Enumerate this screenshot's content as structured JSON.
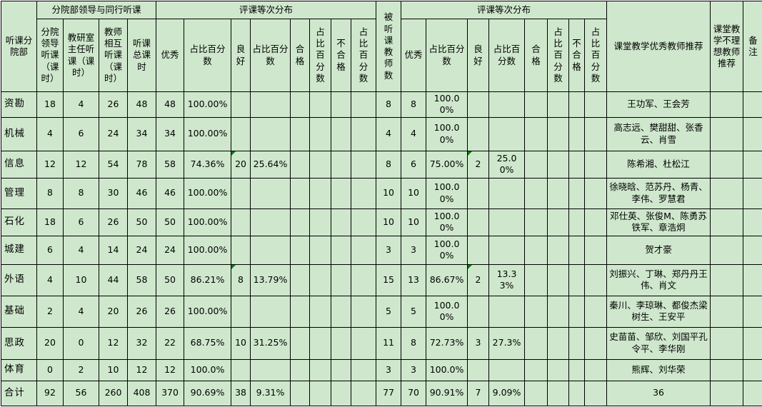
{
  "table": {
    "corner_header": "听课分院部",
    "groups": {
      "peer_listening": "分院部领导与同行听课",
      "eval_dist_1": "评课等次分布",
      "eval_dist_2": "评课等次分布"
    },
    "merged_headers": {
      "observed_teachers": "被听课教师数",
      "excellent_recommend": "课堂教学优秀教师推荐",
      "poor_recommend": "课堂教学不理想教师推荐",
      "remark": "备注"
    },
    "sub_headers": [
      "分院领导听课（课时）",
      "教研室主任听课（课时）",
      "教师相互听课（课时）",
      "听课总课时",
      "优秀",
      "占比百分数",
      "良好",
      "占比百分数",
      "合格",
      "占比百分数",
      "不合格",
      "占比百分数",
      "优秀",
      "占比百分数",
      "良好",
      "占比百分数",
      "合格",
      "占比百分数",
      "不合格",
      "占比百分数"
    ],
    "rows": [
      {
        "label": "资勘",
        "cells": [
          "18",
          "4",
          "26",
          "48",
          "48",
          "100.00%",
          "",
          "",
          "",
          "",
          "",
          "",
          "8",
          "8",
          "100.00%",
          "",
          "",
          "",
          "",
          "",
          "",
          "王功军、王会芳",
          "",
          ""
        ],
        "triangles": []
      },
      {
        "label": "机械",
        "cells": [
          "4",
          "6",
          "24",
          "34",
          "34",
          "100.00%",
          "",
          "",
          "",
          "",
          "",
          "",
          "4",
          "4",
          "100.00%",
          "",
          "",
          "",
          "",
          "",
          "",
          "高志远、樊甜甜、张香云、肖雪",
          "",
          ""
        ],
        "triangles": []
      },
      {
        "label": "信息",
        "cells": [
          "12",
          "12",
          "54",
          "78",
          "58",
          "74.36%",
          "20",
          "25.64%",
          "",
          "",
          "",
          "",
          "8",
          "6",
          "75.00%",
          "2",
          "25.00%",
          "",
          "",
          "",
          "",
          "陈希湘、杜松江",
          "",
          ""
        ],
        "triangles": [
          6,
          15
        ]
      },
      {
        "label": "管理",
        "cells": [
          "8",
          "8",
          "30",
          "46",
          "46",
          "100.00%",
          "",
          "",
          "",
          "",
          "",
          "",
          "10",
          "10",
          "100.00%",
          "",
          "",
          "",
          "",
          "",
          "",
          "徐晓晗、范苏丹、杨青、李伟、罗慧君",
          "",
          ""
        ],
        "triangles": []
      },
      {
        "label": "石化",
        "cells": [
          "18",
          "6",
          "26",
          "50",
          "50",
          "100.00%",
          "",
          "",
          "",
          "",
          "",
          "",
          "10",
          "10",
          "100.00%",
          "",
          "",
          "",
          "",
          "",
          "",
          "邓仕英、张俊M、陈勇苏铁军、章浩炯",
          "",
          ""
        ],
        "triangles": []
      },
      {
        "label": "城建",
        "cells": [
          "6",
          "4",
          "14",
          "24",
          "24",
          "100.00%",
          "",
          "",
          "",
          "",
          "",
          "",
          "3",
          "3",
          "100.00%",
          "",
          "",
          "",
          "",
          "",
          "",
          "贺才豪",
          "",
          ""
        ],
        "triangles": []
      },
      {
        "label": "外语",
        "cells": [
          "4",
          "10",
          "44",
          "58",
          "50",
          "86.21%",
          "8",
          "13.79%",
          "",
          "",
          "",
          "",
          "15",
          "13",
          "86.67%",
          "2",
          "13.33%",
          "",
          "",
          "",
          "",
          "刘振兴、丁琳、郑丹丹王伟、肖文",
          "",
          ""
        ],
        "triangles": [
          6,
          15
        ]
      },
      {
        "label": "基础",
        "cells": [
          "2",
          "4",
          "20",
          "26",
          "26",
          "100.00%",
          "",
          "",
          "",
          "",
          "",
          "",
          "5",
          "5",
          "100.00%",
          "",
          "",
          "",
          "",
          "",
          "",
          "秦川、李琼琳、都俊杰梁树生、王安平",
          "",
          ""
        ],
        "triangles": []
      },
      {
        "label": "思政",
        "cells": [
          "20",
          "0",
          "12",
          "32",
          "22",
          "68.75%",
          "10",
          "31.25%",
          "",
          "",
          "",
          "",
          "11",
          "8",
          "72.73%",
          "3",
          "27.3%",
          "",
          "",
          "",
          "",
          "史苗苗、邹欣、刘国平孔令平、李华刚",
          "",
          ""
        ],
        "triangles": []
      },
      {
        "label": "体育",
        "cells": [
          "0",
          "2",
          "10",
          "12",
          "12",
          "100.0%",
          "",
          "",
          "",
          "",
          "",
          "",
          "3",
          "3",
          "100.0%",
          "",
          "",
          "",
          "",
          "",
          "",
          "熊辉、刘华荣",
          "",
          ""
        ],
        "triangles": []
      },
      {
        "label": "合计",
        "cells": [
          "92",
          "56",
          "260",
          "408",
          "370",
          "90.69%",
          "38",
          "9.31%",
          "",
          "",
          "",
          "",
          "77",
          "70",
          "90.91%",
          "7",
          "9.09%",
          "",
          "",
          "",
          "",
          "36",
          "",
          ""
        ],
        "triangles": []
      }
    ]
  },
  "colors": {
    "cell_background": "#cfe8cd",
    "grid_line": "#000000",
    "error_triangle": "#0b7a0b"
  }
}
